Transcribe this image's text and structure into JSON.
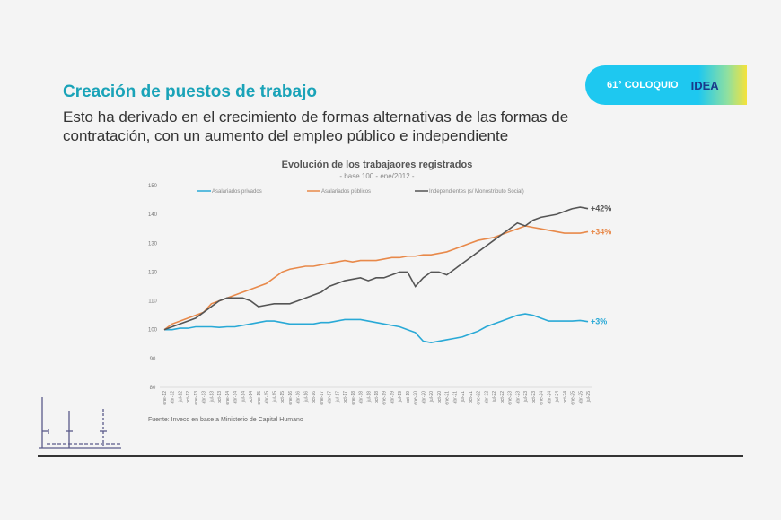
{
  "slide": {
    "title": "Creación de puestos de trabajo",
    "subtitle": "Esto ha derivado en el crecimiento de formas alternativas de las formas de contratación, con un aumento del empleo público e independiente",
    "badge_text": "61° COLOQUIO",
    "badge_logo": "IDEA"
  },
  "chart_data": {
    "type": "line",
    "title": "Evolución de los trabajaores registrados",
    "subtitle": "- base 100 - ene/2012 -",
    "source": "Fuente: Invecq en base a Ministerio de Capital Humano",
    "ylim": [
      80,
      150
    ],
    "yticks": [
      80,
      90,
      100,
      110,
      120,
      130,
      140,
      150
    ],
    "grid": "horizontal-baseline-only",
    "legend": "top",
    "x": [
      "ene-12",
      "abr-12",
      "jul-12",
      "oct-12",
      "ene-13",
      "abr-13",
      "jul-13",
      "oct-13",
      "ene-14",
      "abr-14",
      "jul-14",
      "oct-14",
      "ene-15",
      "abr-15",
      "jul-15",
      "oct-15",
      "ene-16",
      "abr-16",
      "jul-16",
      "oct-16",
      "ene-17",
      "abr-17",
      "jul-17",
      "oct-17",
      "ene-18",
      "abr-18",
      "jul-18",
      "oct-18",
      "ene-19",
      "abr-19",
      "jul-19",
      "oct-19",
      "ene-20",
      "abr-20",
      "jul-20",
      "oct-20",
      "ene-21",
      "abr-21",
      "jul-21",
      "oct-21",
      "ene-22",
      "abr-22",
      "jul-22",
      "oct-22",
      "ene-23",
      "abr-23",
      "jul-23",
      "oct-23",
      "ene-24",
      "abr-24",
      "jul-24",
      "oct-24",
      "ene-25",
      "abr-25",
      "jul-25"
    ],
    "series": [
      {
        "name": "Asalariados privados",
        "color": "#29a9d6",
        "end_label": "+3%",
        "values": [
          100,
          100,
          100.5,
          100.5,
          101,
          101,
          101,
          100.8,
          101,
          101,
          101.5,
          102,
          102.5,
          103,
          103,
          102.5,
          102,
          102,
          102,
          102,
          102.5,
          102.5,
          103,
          103.5,
          103.5,
          103.5,
          103,
          102.5,
          102,
          101.5,
          101,
          100,
          99,
          96,
          95.5,
          96,
          96.5,
          97,
          97.5,
          98.5,
          99.5,
          101,
          102,
          103,
          104,
          105,
          105.5,
          105,
          104,
          103,
          103,
          103,
          103,
          103.2,
          102.8
        ]
      },
      {
        "name": "Asalariados públicos",
        "color": "#e8894a",
        "end_label": "+34%",
        "values": [
          100,
          102,
          103,
          104,
          105,
          106,
          109,
          110,
          111,
          112,
          113,
          114,
          115,
          116,
          118,
          120,
          121,
          121.5,
          122,
          122,
          122.5,
          123,
          123.5,
          124,
          123.5,
          124,
          124,
          124,
          124.5,
          125,
          125,
          125.5,
          125.5,
          126,
          126,
          126.5,
          127,
          128,
          129,
          130,
          131,
          131.5,
          132,
          133,
          134,
          135,
          136,
          135.5,
          135,
          134.5,
          134,
          133.5,
          133.5,
          133.5,
          134
        ]
      },
      {
        "name": "Independientes (s/ Monostributo Social)",
        "color": "#555555",
        "end_label": "+42%",
        "values": [
          100,
          101,
          102,
          103,
          104,
          106,
          108,
          110,
          111,
          111,
          111,
          110,
          108,
          108.5,
          109,
          109,
          109,
          110,
          111,
          112,
          113,
          115,
          116,
          117,
          117.5,
          118,
          117,
          118,
          118,
          119,
          120,
          120,
          115,
          118,
          120,
          120,
          119,
          121,
          123,
          125,
          127,
          129,
          131,
          133,
          135,
          137,
          136,
          138,
          139,
          139.5,
          140,
          141,
          142,
          142.5,
          142
        ]
      }
    ]
  }
}
